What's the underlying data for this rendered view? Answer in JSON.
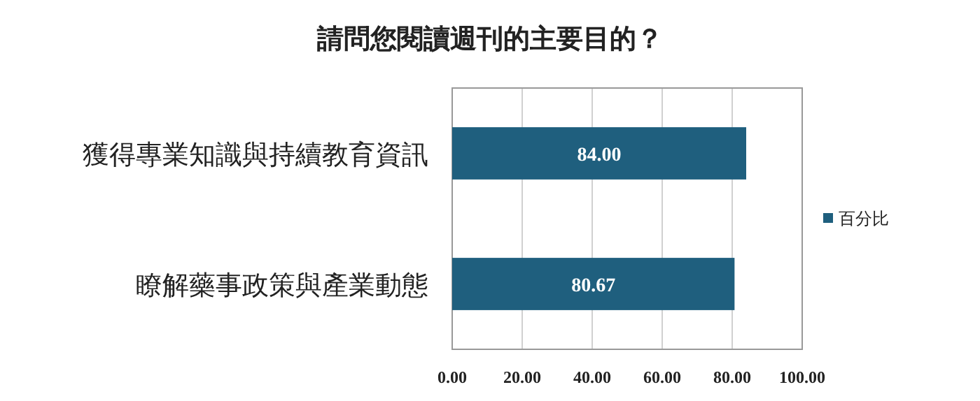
{
  "chart_data": {
    "type": "bar",
    "orientation": "horizontal",
    "title": "請問您閱讀週刊的主要目的？",
    "categories": [
      "獲得專業知識與持續教育資訊",
      "瞭解藥事政策與產業動態"
    ],
    "series": [
      {
        "name": "百分比",
        "color": "#1f5f7e",
        "values": [
          84.0,
          80.67
        ],
        "value_labels": [
          "84.00",
          "80.67"
        ]
      }
    ],
    "xlim": [
      0,
      100
    ],
    "xticks": [
      {
        "value": 0,
        "label": "0.00"
      },
      {
        "value": 20,
        "label": "20.00"
      },
      {
        "value": 40,
        "label": "40.00"
      },
      {
        "value": 60,
        "label": "60.00"
      },
      {
        "value": 80,
        "label": "80.00"
      },
      {
        "value": 100,
        "label": "100.00"
      }
    ],
    "grid": "x",
    "legend": "right"
  }
}
